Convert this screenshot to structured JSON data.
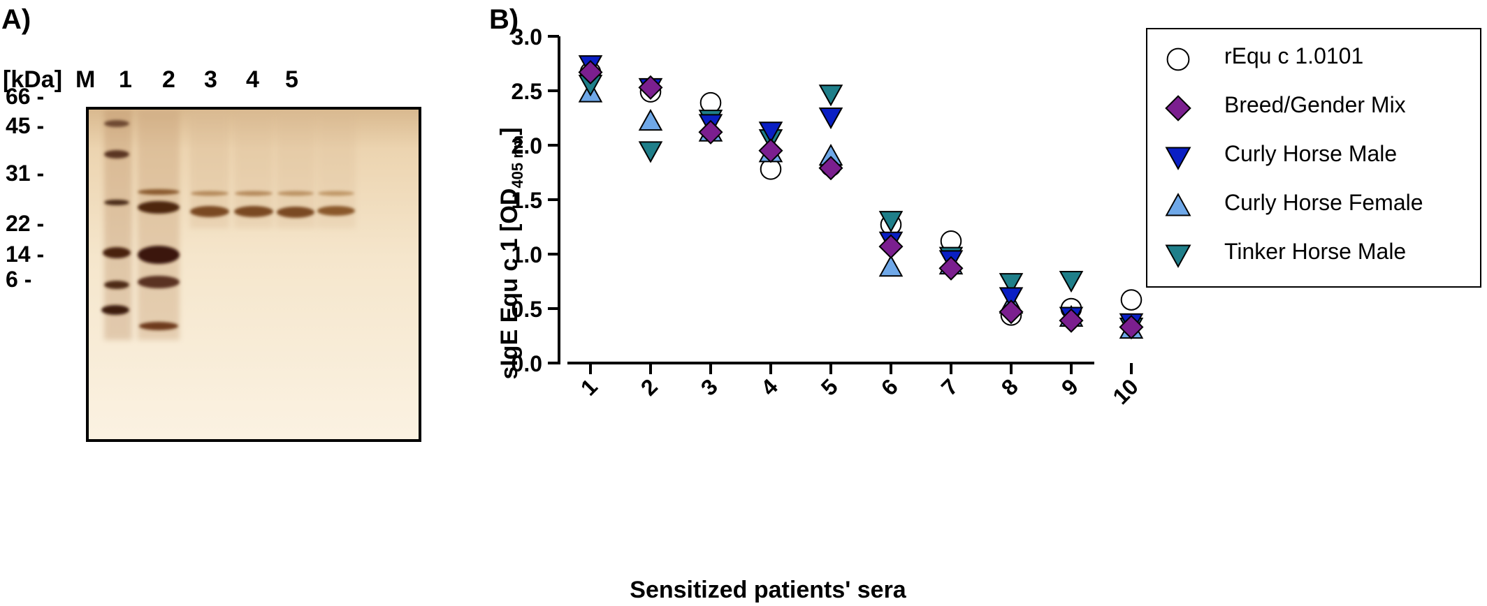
{
  "panel_a": {
    "label": "A)",
    "unit_label": "[kDa]",
    "lane_labels": [
      "M",
      "1",
      "2",
      "3",
      "4",
      "5"
    ],
    "marker_labels": [
      "66 -",
      "45 -",
      "31 -",
      "22 -",
      "14 -",
      "6 -"
    ]
  },
  "panel_b": {
    "label": "B)"
  },
  "chart_data": {
    "type": "scatter",
    "title": "",
    "xlabel": "Sensitized patients' sera",
    "ylabel": "sIgE Equ c 1 [OD405 nm]",
    "ylabel_main": "sIgE Equ c 1 [OD",
    "ylabel_sub": "405 nm",
    "ylabel_end": "]",
    "categories": [
      "1",
      "2",
      "3",
      "4",
      "5",
      "6",
      "7",
      "8",
      "9",
      "10"
    ],
    "ylim": [
      0,
      3.0
    ],
    "yticks": [
      "0.0",
      "0.5",
      "1.0",
      "1.5",
      "2.0",
      "2.5",
      "3.0"
    ],
    "legend_position": "top-right",
    "grid": false,
    "series": [
      {
        "name": "rEqu c 1.0101",
        "marker": "circle",
        "color": "#ffffff",
        "values": [
          2.67,
          2.49,
          2.39,
          1.78,
          1.81,
          1.27,
          1.12,
          0.44,
          0.5,
          0.58
        ]
      },
      {
        "name": "Breed/Gender Mix",
        "marker": "diamond",
        "color": "#7b1f8f",
        "values": [
          2.67,
          2.53,
          2.12,
          1.95,
          1.79,
          1.07,
          0.87,
          0.47,
          0.39,
          0.33
        ]
      },
      {
        "name": "Curly Horse Male",
        "marker": "triangle-down",
        "color": "#0a1fc4",
        "values": [
          2.74,
          2.53,
          2.2,
          2.13,
          2.26,
          1.12,
          0.95,
          0.61,
          0.43,
          0.37
        ]
      },
      {
        "name": "Curly Horse Female",
        "marker": "triangle-up",
        "color": "#6fa8e8",
        "values": [
          2.48,
          2.22,
          2.12,
          1.93,
          1.9,
          0.88,
          0.9,
          0.54,
          0.42,
          0.31
        ]
      },
      {
        "name": "Tinker Horse Male",
        "marker": "triangle-down",
        "color": "#1f7f8a",
        "values": [
          2.56,
          1.95,
          2.24,
          2.06,
          2.47,
          1.31,
          0.98,
          0.74,
          0.76,
          0.33
        ]
      }
    ]
  }
}
